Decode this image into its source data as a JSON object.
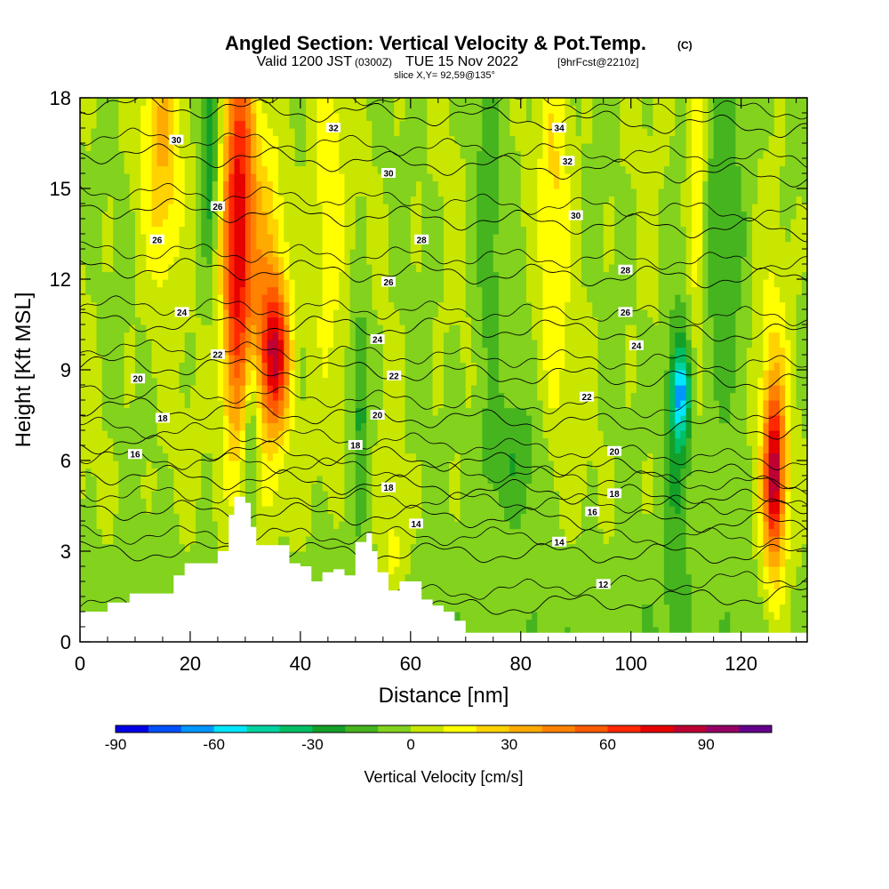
{
  "header": {
    "title_main": "Angled Section: Vertical Velocity & Pot.Temp.",
    "title_unit": "(C)",
    "subtitle_a": "Valid 1200 JST",
    "subtitle_b": "(0300Z)",
    "subtitle_c": "TUE 15 Nov 2022",
    "subtitle_d": "[9hrFcst@2210z]",
    "slice_info": "slice X,Y= 92,59@135°"
  },
  "chart_data": {
    "type": "heatmap",
    "xlabel": "Distance [nm]",
    "ylabel": "Height [Kft MSL]",
    "xlim": [
      0,
      132
    ],
    "ylim": [
      0,
      18
    ],
    "x_ticks": [
      0,
      20,
      40,
      60,
      80,
      100,
      120
    ],
    "y_ticks": [
      0,
      3,
      6,
      9,
      12,
      15,
      18
    ],
    "grid": false,
    "terrain_profile": {
      "x": [
        0,
        5,
        9,
        13,
        17,
        19,
        21,
        23,
        25,
        27,
        28,
        29,
        30,
        31,
        32,
        34,
        36,
        38,
        40,
        42,
        44,
        46,
        48,
        50,
        52,
        53,
        54,
        56,
        58,
        60,
        62,
        64,
        66,
        68,
        70,
        72,
        132
      ],
      "h": [
        1.0,
        1.3,
        1.6,
        1.6,
        2.2,
        2.6,
        2.6,
        2.6,
        3.0,
        4.2,
        4.8,
        4.8,
        4.6,
        3.8,
        3.2,
        3.2,
        3.2,
        2.6,
        2.5,
        2.0,
        2.3,
        2.4,
        2.2,
        3.3,
        3.6,
        3.0,
        2.3,
        1.7,
        2.0,
        2.0,
        1.4,
        1.2,
        1.0,
        0.7,
        0.3,
        0.3,
        0.3
      ]
    },
    "velocity_field_description": "vertical velocity anomaly bands",
    "velocity_features": [
      {
        "x": 29,
        "y": 15,
        "sx": 2.0,
        "sy": 4.5,
        "v": 55
      },
      {
        "x": 28,
        "y": 11,
        "sx": 1.8,
        "sy": 4.0,
        "v": 35
      },
      {
        "x": 35.5,
        "y": 9.5,
        "sx": 1.8,
        "sy": 1.6,
        "v": 60
      },
      {
        "x": 34,
        "y": 11,
        "sx": 2.5,
        "sy": 4.0,
        "v": 30
      },
      {
        "x": 15,
        "y": 16.5,
        "sx": 2.5,
        "sy": 3.0,
        "v": 30
      },
      {
        "x": 126,
        "y": 5.5,
        "sx": 1.2,
        "sy": 1.8,
        "v": 60
      },
      {
        "x": 126,
        "y": 6.0,
        "sx": 2.0,
        "sy": 4.0,
        "v": 30
      },
      {
        "x": 112,
        "y": 15,
        "sx": 1.2,
        "sy": 4.0,
        "v": 25
      },
      {
        "x": 109,
        "y": 8.2,
        "sx": 1.2,
        "sy": 1.0,
        "v": -45
      },
      {
        "x": 108.5,
        "y": 6.5,
        "sx": 1.8,
        "sy": 4.0,
        "v": -25
      },
      {
        "x": 23.5,
        "y": 16.5,
        "sx": 1.0,
        "sy": 2.5,
        "v": -30
      },
      {
        "x": 31,
        "y": 7,
        "sx": 1.0,
        "sy": 1.8,
        "v": -30
      },
      {
        "x": 51,
        "y": 8,
        "sx": 1.2,
        "sy": 2.5,
        "v": -25
      },
      {
        "x": 78,
        "y": 6.0,
        "sx": 4.0,
        "sy": 1.5,
        "v": -18
      },
      {
        "x": 117,
        "y": 14,
        "sx": 3.0,
        "sy": 5.0,
        "v": -18
      },
      {
        "x": 86,
        "y": 14,
        "sx": 2.0,
        "sy": 5.0,
        "v": 20
      },
      {
        "x": 74,
        "y": 14,
        "sx": 2.0,
        "sy": 5.0,
        "v": -15
      },
      {
        "x": 45,
        "y": 14,
        "sx": 2.0,
        "sy": 5.0,
        "v": 18
      },
      {
        "x": 57,
        "y": 3.0,
        "sx": 1.5,
        "sy": 1.2,
        "v": 15
      }
    ],
    "isotherms": [
      {
        "label": "12",
        "y0": 0.6,
        "y1": 1.6
      },
      {
        "label": "14",
        "y0": 3.0,
        "y1": 2.9
      },
      {
        "label": "16",
        "y0": 4.4,
        "y1": 3.9
      },
      {
        "label": "18",
        "y0": 5.6,
        "y1": 4.6
      },
      {
        "label": "20",
        "y0": 6.6,
        "y1": 5.4
      },
      {
        "label": "22",
        "y0": 7.8,
        "y1": 7.0
      },
      {
        "label": "24",
        "y0": 9.2,
        "y1": 8.6
      },
      {
        "label": "26",
        "y0": 10.6,
        "y1": 10.2
      },
      {
        "label": "28",
        "y0": 12.4,
        "y1": 12.0
      },
      {
        "label": "30",
        "y0": 14.4,
        "y1": 13.6
      },
      {
        "label": "32",
        "y0": 16.2,
        "y1": 15.4
      },
      {
        "label": "34",
        "y0": 17.8,
        "y1": 17.0
      }
    ],
    "isotherm_labels": [
      {
        "text": "30",
        "x": 17.5,
        "y": 16.6
      },
      {
        "text": "32",
        "x": 46,
        "y": 17.0
      },
      {
        "text": "34",
        "x": 87,
        "y": 17.0
      },
      {
        "text": "26",
        "x": 25,
        "y": 14.4
      },
      {
        "text": "26",
        "x": 14,
        "y": 13.3
      },
      {
        "text": "30",
        "x": 56,
        "y": 15.5
      },
      {
        "text": "32",
        "x": 88.5,
        "y": 15.9
      },
      {
        "text": "28",
        "x": 62,
        "y": 13.3
      },
      {
        "text": "30",
        "x": 90,
        "y": 14.1
      },
      {
        "text": "28",
        "x": 99,
        "y": 12.3
      },
      {
        "text": "26",
        "x": 56,
        "y": 11.9
      },
      {
        "text": "26",
        "x": 99,
        "y": 10.9
      },
      {
        "text": "24",
        "x": 18.5,
        "y": 10.9
      },
      {
        "text": "24",
        "x": 54,
        "y": 10.0
      },
      {
        "text": "24",
        "x": 101,
        "y": 9.8
      },
      {
        "text": "22",
        "x": 25,
        "y": 9.5
      },
      {
        "text": "22",
        "x": 57,
        "y": 8.8
      },
      {
        "text": "22",
        "x": 92,
        "y": 8.1
      },
      {
        "text": "20",
        "x": 10.5,
        "y": 8.7
      },
      {
        "text": "20",
        "x": 54,
        "y": 7.5
      },
      {
        "text": "18",
        "x": 15,
        "y": 7.4
      },
      {
        "text": "18",
        "x": 50,
        "y": 6.5
      },
      {
        "text": "16",
        "x": 10,
        "y": 6.2
      },
      {
        "text": "20",
        "x": 97,
        "y": 6.3
      },
      {
        "text": "18",
        "x": 56,
        "y": 5.1
      },
      {
        "text": "18",
        "x": 97,
        "y": 4.9
      },
      {
        "text": "16",
        "x": 93,
        "y": 4.3
      },
      {
        "text": "14",
        "x": 61,
        "y": 3.9
      },
      {
        "text": "14",
        "x": 87,
        "y": 3.3
      },
      {
        "text": "12",
        "x": 95,
        "y": 1.9
      }
    ]
  },
  "colorbar": {
    "title": "Vertical Velocity [cm/s]",
    "vmin": -90,
    "step": 10,
    "ticks": [
      {
        "value": -90,
        "label": "-90"
      },
      {
        "value": -60,
        "label": "-60"
      },
      {
        "value": -30,
        "label": "-30"
      },
      {
        "value": 0,
        "label": "0"
      },
      {
        "value": 30,
        "label": "30"
      },
      {
        "value": 60,
        "label": "60"
      },
      {
        "value": 90,
        "label": "90"
      }
    ],
    "colors": [
      "#0000e6",
      "#0050ff",
      "#0096ff",
      "#00e6ff",
      "#00d2a0",
      "#00be64",
      "#14a028",
      "#46b41e",
      "#82d21e",
      "#c8e600",
      "#ffff00",
      "#ffd200",
      "#ffaa00",
      "#ff8200",
      "#ff5a00",
      "#ff2800",
      "#e60000",
      "#be0032",
      "#960064",
      "#64008c"
    ]
  }
}
